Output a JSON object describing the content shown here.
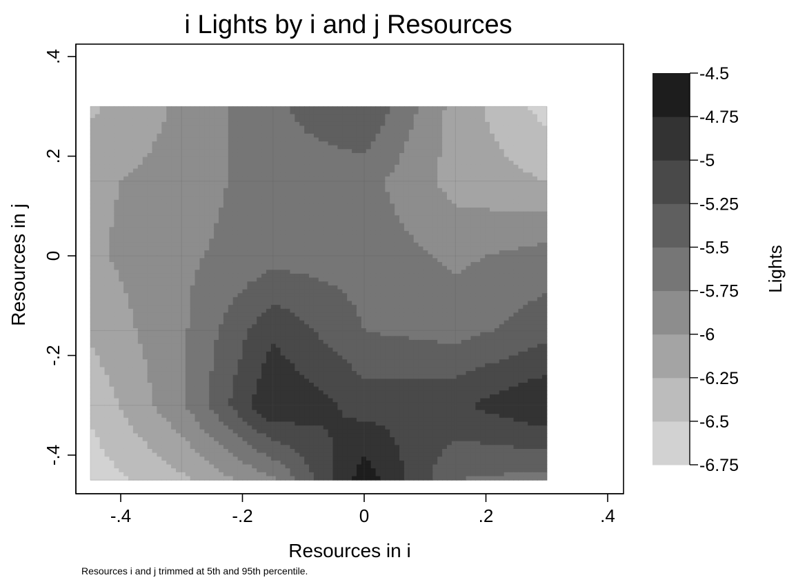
{
  "chart_data": {
    "type": "heatmap",
    "subtype": "filled-contour",
    "title": "i Lights by i and j Resources",
    "xlabel": "Resources in i",
    "ylabel": "Resources in j",
    "zlabel": "Lights",
    "xlim": [
      -0.47,
      0.42
    ],
    "ylim": [
      -0.48,
      0.42
    ],
    "x_ticks": [
      -0.4,
      -0.2,
      0,
      0.2,
      0.4
    ],
    "x_tick_labels": [
      "-.4",
      "-.2",
      "0",
      ".2",
      ".4"
    ],
    "y_ticks": [
      -0.4,
      -0.2,
      0,
      0.2,
      0.4
    ],
    "y_tick_labels": [
      "-.4",
      "-.2",
      "0",
      ".2",
      ".4"
    ],
    "grid": false,
    "x": [
      -0.45,
      -0.3,
      -0.15,
      0,
      0.15,
      0.3
    ],
    "y": [
      0.3,
      0.15,
      0,
      -0.15,
      -0.3,
      -0.45
    ],
    "z": [
      [
        -6.3,
        -5.95,
        -5.55,
        -5.25,
        -6.1,
        -6.6
      ],
      [
        -6.05,
        -5.9,
        -5.6,
        -5.65,
        -6.1,
        -6.25
      ],
      [
        -6.05,
        -5.8,
        -5.6,
        -5.6,
        -5.8,
        -5.65
      ],
      [
        -6.2,
        -5.8,
        -5.05,
        -5.5,
        -5.6,
        -5.35
      ],
      [
        -6.45,
        -5.8,
        -4.75,
        -5.1,
        -5.05,
        -4.75
      ],
      [
        -6.65,
        -6.3,
        -5.8,
        -4.6,
        -5.5,
        -5.6
      ]
    ],
    "levels": [
      -6.75,
      -6.5,
      -6.25,
      -6,
      -5.75,
      -5.5,
      -5.25,
      -5,
      -4.75,
      -4.5
    ],
    "colorbar_labels": [
      "-4.5",
      "-4.75",
      "-5",
      "-5.25",
      "-5.5",
      "-5.75",
      "-6",
      "-6.25",
      "-6.5",
      "-6.75"
    ],
    "colors": [
      "#d2d2d2",
      "#bcbcbc",
      "#a4a4a4",
      "#8d8d8d",
      "#767676",
      "#5f5f5f",
      "#494949",
      "#333333",
      "#1d1d1d"
    ],
    "legend_position": "right",
    "note": "Resources i and j trimmed at 5th and 95th percentile."
  }
}
